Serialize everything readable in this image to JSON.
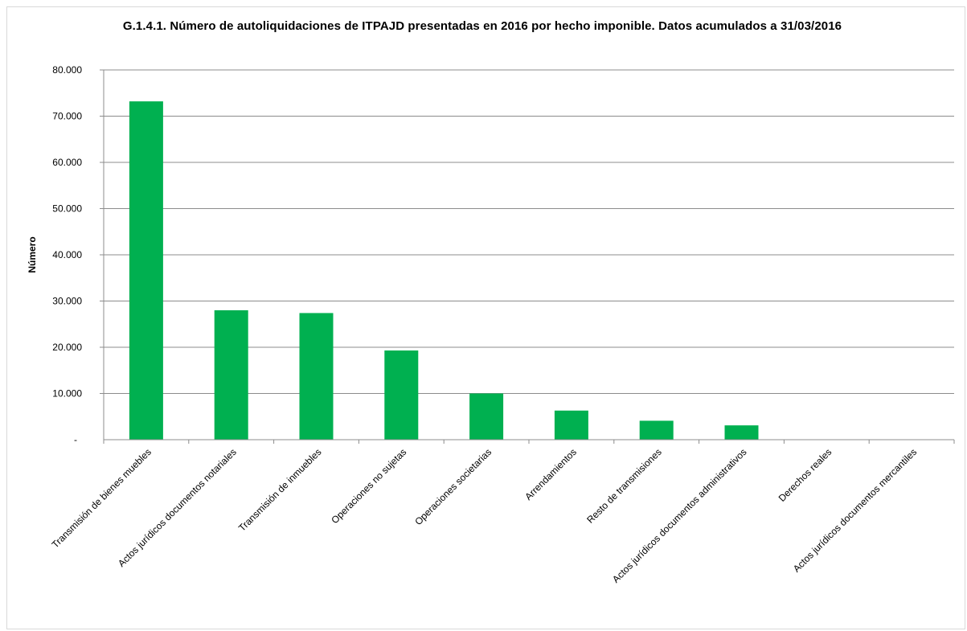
{
  "chart_data": {
    "type": "bar",
    "title": "G.1.4.1. Número de autoliquidaciones de ITPAJD presentadas en 2016 por hecho imponible. Datos acumulados a 31/03/2016",
    "xlabel": "",
    "ylabel": "Número",
    "ylim": [
      0,
      80000
    ],
    "yticks": [
      0,
      10000,
      20000,
      30000,
      40000,
      50000,
      60000,
      70000,
      80000
    ],
    "ytick_labels": [
      "-",
      "10.000",
      "20.000",
      "30.000",
      "40.000",
      "50.000",
      "60.000",
      "70.000",
      "80.000"
    ],
    "categories": [
      "Transmisión de bienes muebles",
      "Actos jurídicos documentos notariales",
      "Transmisión de inmuebles",
      "Operaciones no sujetas",
      "Operaciones societarias",
      "Arrendamientos",
      "Resto de transmisiones",
      "Actos jurídicos documentos administrativos",
      "Derechos reales",
      "Actos jurídicos documentos mercantiles"
    ],
    "values": [
      73200,
      28000,
      27400,
      19300,
      10000,
      6300,
      4100,
      3100,
      80,
      60
    ],
    "bar_color": "#00b050",
    "grid": true,
    "legend": "none"
  }
}
